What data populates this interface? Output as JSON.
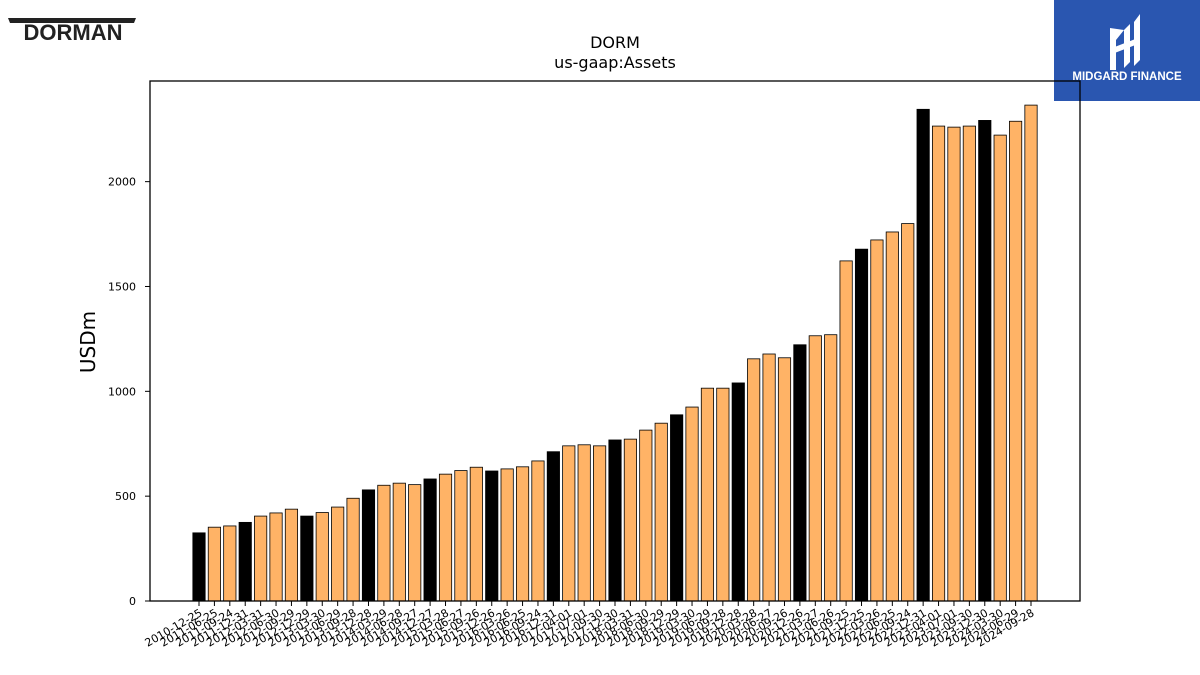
{
  "branding": {
    "left_logo_text": "DORMAN",
    "right_logo_text": "MIDGARD FINANCE",
    "right_logo_color": "#2a56b0"
  },
  "chart_data": {
    "type": "bar",
    "title": "DORM",
    "subtitle": "us-gaap:Assets",
    "ylabel": "USDm",
    "xlabel": "",
    "ylim": [
      0,
      2480
    ],
    "yticks": [
      0,
      500,
      1000,
      1500,
      2000
    ],
    "grid": false,
    "colors": {
      "annual": "#000000",
      "quarterly": "#ffb366",
      "edge": "#000000"
    },
    "categories": [
      "2010-12-25",
      "2011-06-25",
      "2011-09-24",
      "2011-12-31",
      "2012-03-31",
      "2012-06-30",
      "2012-09-29",
      "2012-12-29",
      "2013-03-30",
      "2013-06-29",
      "2013-09-28",
      "2013-12-28",
      "2014-03-29",
      "2014-06-28",
      "2014-09-27",
      "2014-12-27",
      "2015-03-28",
      "2015-06-27",
      "2015-09-26",
      "2015-12-26",
      "2016-03-26",
      "2016-06-25",
      "2016-09-24",
      "2016-12-31",
      "2017-04-01",
      "2017-07-01",
      "2017-09-30",
      "2017-12-30",
      "2018-03-31",
      "2018-06-30",
      "2018-09-29",
      "2018-12-29",
      "2019-03-30",
      "2019-06-29",
      "2019-09-28",
      "2019-12-28",
      "2020-03-28",
      "2020-06-27",
      "2020-09-26",
      "2020-12-26",
      "2021-03-27",
      "2021-06-26",
      "2021-09-25",
      "2021-12-25",
      "2022-03-26",
      "2022-06-25",
      "2022-09-24",
      "2022-12-31",
      "2023-04-01",
      "2023-07-01",
      "2023-09-30",
      "2023-12-30",
      "2024-03-30",
      "2024-06-29",
      "2024-09-28"
    ],
    "visible_tick_labels": [
      "2010-12-25",
      "2011-06-25",
      "2011-09-24",
      "2011-12-31",
      "2012-03-31",
      "2012-06-30",
      "2012-09-29",
      "2012-12-29",
      "2013-03-30",
      "2013-06-29",
      "2013-09-28",
      "2013-12-28",
      "2014-03-29",
      "2014-06-28",
      "2014-09-27",
      "2014-12-27",
      "2015-03-28",
      "2015-06-27",
      "2015-09-26",
      "2015-12-26",
      "2016-03-26",
      "2016-06-25",
      "2016-09-24",
      "2016-12-31",
      "2017-04-01",
      "2017-07-01",
      "2017-09-30",
      "2017-12-30",
      "2018-03-31",
      "2018-06-30",
      "2018-09-29",
      "2018-12-29",
      "2019-03-30",
      "2019-06-29",
      "2019-09-28",
      "2019-12-28",
      "2020-03-28",
      "2020-06-27",
      "2020-09-26",
      "2020-12-26",
      "2021-03-27",
      "2021-06-26",
      "2021-09-25",
      "2021-12-25",
      "2022-03-26",
      "2022-06-25",
      "2022-09-24",
      "2022-12-31",
      "2023-04-01",
      "2023-07-01",
      "2023-09-30",
      "2023-12-30",
      "2024-03-30",
      "2024-06-29",
      "2024-09-28"
    ],
    "values": [
      325,
      352,
      358,
      375,
      405,
      420,
      438,
      405,
      422,
      448,
      490,
      530,
      552,
      562,
      555,
      582,
      605,
      622,
      638,
      620,
      630,
      640,
      668,
      712,
      740,
      745,
      740,
      768,
      772,
      815,
      848,
      888,
      925,
      1015,
      1015,
      1040,
      1155,
      1178,
      1160,
      1222,
      1265,
      1270,
      1622,
      1678,
      1722,
      1760,
      1800,
      2345,
      2265,
      2260,
      2265,
      2292,
      2222,
      2288,
      2365
    ],
    "annual": [
      true,
      false,
      false,
      true,
      false,
      false,
      false,
      true,
      false,
      false,
      false,
      true,
      false,
      false,
      false,
      true,
      false,
      false,
      false,
      true,
      false,
      false,
      false,
      true,
      false,
      false,
      false,
      true,
      false,
      false,
      false,
      true,
      false,
      false,
      false,
      true,
      false,
      false,
      false,
      true,
      false,
      false,
      false,
      true,
      false,
      false,
      false,
      true,
      false,
      false,
      false,
      true,
      false,
      false,
      false
    ]
  }
}
